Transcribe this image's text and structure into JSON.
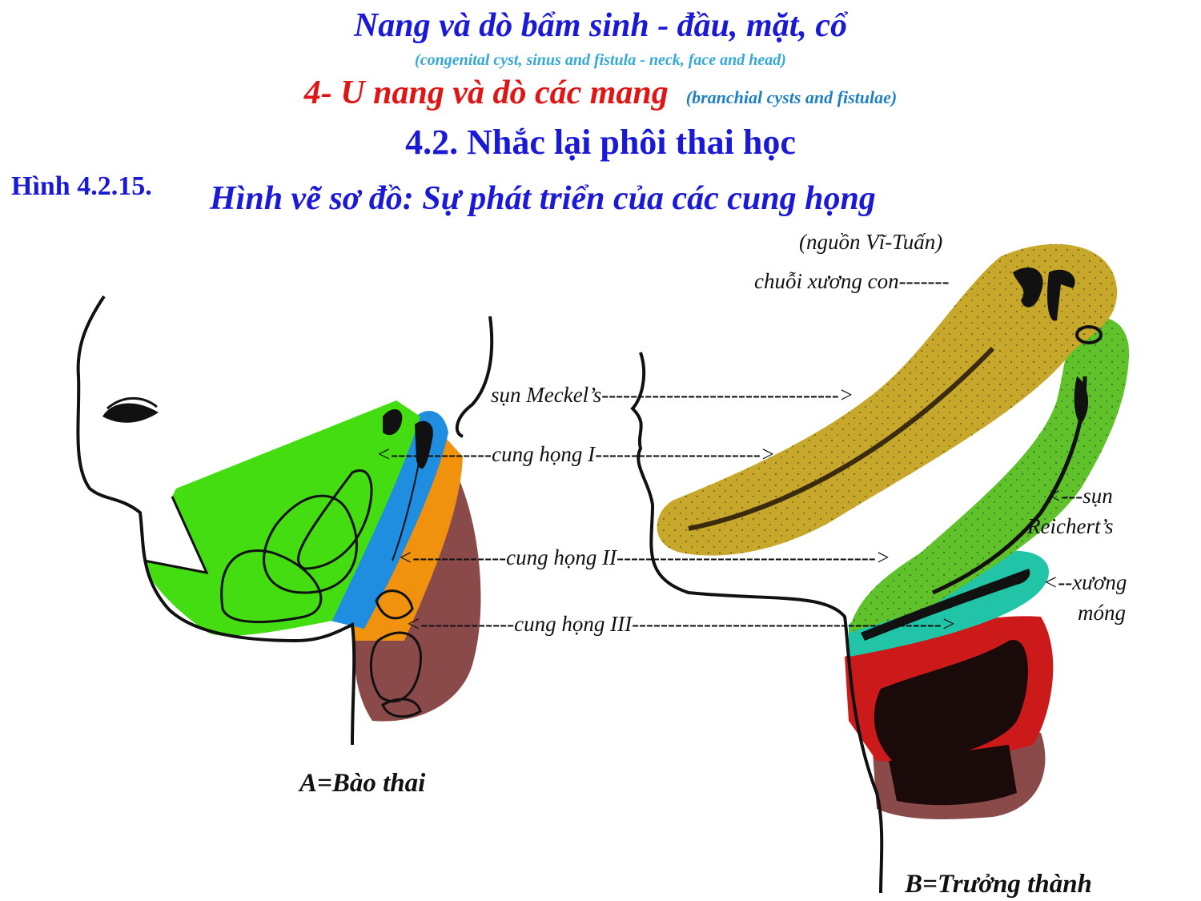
{
  "header": {
    "title": "Nang và dò bẩm sinh - đầu, mặt, cổ",
    "subtitle": "(congenital cyst, sinus and fistula - neck, face and head)",
    "section": "4- U nang và dò các mang",
    "section_en": "(branchial cysts and fistulae)",
    "subsection": "4.2. Nhắc lại phôi thai học"
  },
  "figure": {
    "number": "Hình 4.2.15.",
    "title": "Hình vẽ sơ đồ: Sự phát triển của các cung họng",
    "source": "(nguồn Vĩ-Tuấn)"
  },
  "labels": {
    "ossicles": "chuỗi xương con-------",
    "meckel": "sụn Meckel’s--------------------------------->",
    "arch1": "<--------------cung họng I----------------------->",
    "arch2": "<-------------cung họng II------------------------------------>",
    "arch3": "<-------------cung họng III------------------------------------------->",
    "reichert_1": "<---sụn",
    "reichert_2": "Reichert’s",
    "hyoid_1": "<--xương",
    "hyoid_2": "móng"
  },
  "captions": {
    "fetus": "A=Bào thai",
    "adult": "B=Trưởng thành"
  },
  "colors": {
    "title_blue": "#1a1ad6",
    "section_red": "#e01515",
    "arch1_green": "#44dd11",
    "arch1_gold": "#c8a82a",
    "arch2_blue": "#1f8ee0",
    "arch2_green": "#5fc22a",
    "arch3_orange": "#f0920e",
    "hyoid_teal": "#22c4a8",
    "arch4_red": "#cc1a1a",
    "arch_brown": "#8a4a4a",
    "cartilage_dark": "#1a0a0a"
  }
}
